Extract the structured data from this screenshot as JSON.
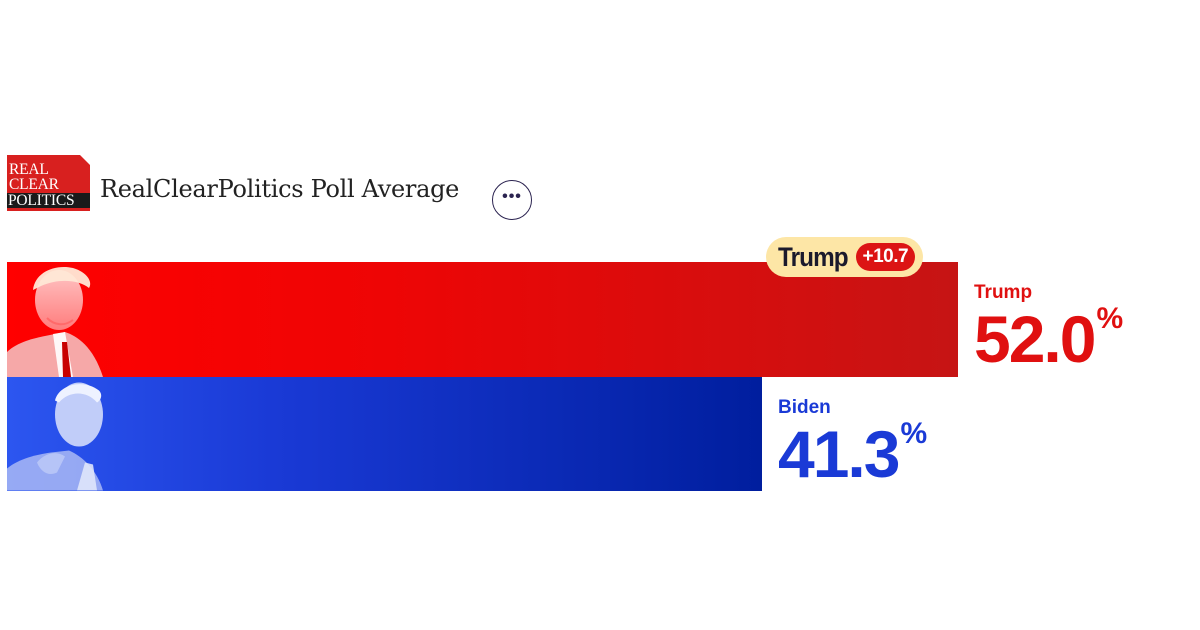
{
  "header": {
    "logo_lines": [
      "REAL",
      "CLEAR",
      "POLITICS"
    ],
    "title": "RealClearPolitics Poll Average",
    "menu_icon": "ellipsis-icon",
    "menu_glyph": "•••"
  },
  "lead": {
    "leader": "Trump",
    "margin": "+10.7"
  },
  "chart_data": {
    "type": "bar",
    "orientation": "horizontal",
    "categories": [
      "Trump",
      "Biden"
    ],
    "values": [
      52.0,
      41.3
    ],
    "value_labels": [
      "52.0",
      "41.3"
    ],
    "unit": "%",
    "colors": [
      "#e01010",
      "#1a3ad6"
    ],
    "portrait_icons": [
      "trump-portrait-icon",
      "biden-portrait-icon"
    ]
  }
}
